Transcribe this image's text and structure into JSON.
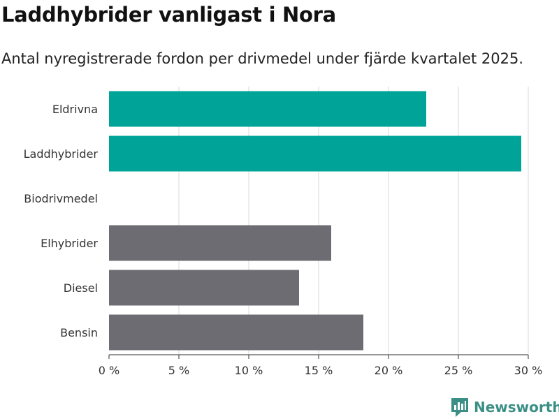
{
  "colors": {
    "highlight": "#00a398",
    "default": "#6d6c72",
    "grid": "#d9d9d9",
    "axis": "#333333",
    "brand": "#3b8f86"
  },
  "branding": {
    "name": "Newsworthy"
  },
  "chart_data": {
    "type": "bar",
    "orientation": "horizontal",
    "title": "Laddhybrider vanligast i Nora",
    "subtitle": "Antal nyregistrerade fordon per drivmedel under fjärde kvartalet 2025.",
    "xlabel": "",
    "ylabel": "",
    "xlim": [
      0,
      30
    ],
    "grid": true,
    "ticks": [
      0,
      5,
      10,
      15,
      20,
      25,
      30
    ],
    "tick_labels": [
      "0 %",
      "5 %",
      "10 %",
      "15 %",
      "20 %",
      "25 %",
      "30 %"
    ],
    "categories": [
      "Eldrivna",
      "Laddhybrider",
      "Biodrivmedel",
      "Elhybrider",
      "Diesel",
      "Bensin"
    ],
    "values": [
      22.7,
      29.5,
      0,
      15.9,
      13.6,
      18.2
    ],
    "highlighted": [
      true,
      true,
      false,
      false,
      false,
      false
    ]
  }
}
